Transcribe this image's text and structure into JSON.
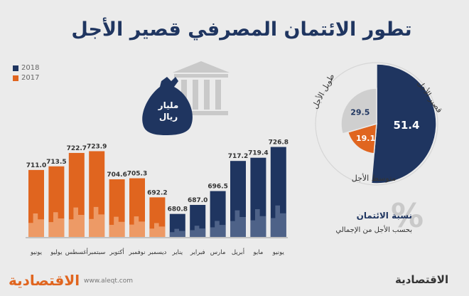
{
  "title": "تطور الائتمان المصرفي قصير الأجل",
  "unit_label": [
    "مليار",
    "ريال"
  ],
  "legend": {
    "y2018": {
      "label": "2018",
      "color": "#1f3560"
    },
    "y2017": {
      "label": "2017",
      "color": "#e0651f"
    }
  },
  "chart_data": [
    {
      "type": "bar",
      "categories": [
        "يونيو",
        "يوليو",
        "أغسطس",
        "سبتمبر",
        "أكتوبر",
        "نوفمبر",
        "ديسمبر",
        "يناير",
        "فبراير",
        "مارس",
        "أبريل",
        "مايو",
        "يونيو"
      ],
      "values": [
        711.0,
        713.5,
        722.7,
        723.9,
        704.6,
        705.3,
        692.2,
        680.8,
        687.0,
        696.5,
        717.2,
        719.4,
        726.8
      ],
      "value_labels": [
        "711.0",
        "713.5",
        "722.7",
        "723.9",
        "704.6",
        "705.3",
        "692.2",
        "680.8",
        "687.0",
        "696.5",
        "717.2",
        "719.4",
        "726.8"
      ],
      "years": [
        "2017",
        "2017",
        "2017",
        "2017",
        "2017",
        "2017",
        "2017",
        "2018",
        "2018",
        "2018",
        "2018",
        "2018",
        "2018"
      ],
      "ylim": [
        665,
        730
      ]
    },
    {
      "type": "pie",
      "slices": [
        {
          "name": "قصير الأجل",
          "value": 51.4,
          "label": "51.4",
          "color": "#1f3560"
        },
        {
          "name": "متوسط الأجل",
          "value": 19.1,
          "label": "19.1",
          "color": "#e0651f"
        },
        {
          "name": "طويل الأجل",
          "value": 29.5,
          "label": "29.5",
          "color": "#cfcfcf"
        }
      ]
    }
  ],
  "share": {
    "title": "نسبة الائتمان",
    "subtitle": "بحسب الأجل من الإجمالي",
    "sign": "%"
  },
  "footer": {
    "url": "www.aleqt.com",
    "brand": "الاقتصادية"
  }
}
